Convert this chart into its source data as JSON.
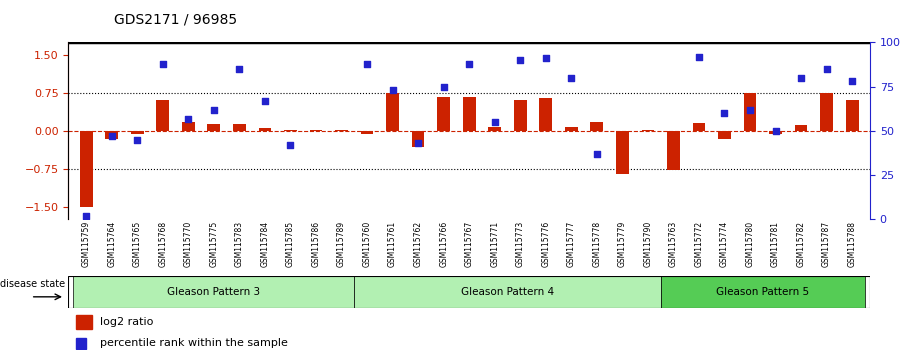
{
  "title": "GDS2171 / 96985",
  "samples": [
    "GSM115759",
    "GSM115764",
    "GSM115765",
    "GSM115768",
    "GSM115770",
    "GSM115775",
    "GSM115783",
    "GSM115784",
    "GSM115785",
    "GSM115786",
    "GSM115789",
    "GSM115760",
    "GSM115761",
    "GSM115762",
    "GSM115766",
    "GSM115767",
    "GSM115771",
    "GSM115773",
    "GSM115776",
    "GSM115777",
    "GSM115778",
    "GSM115779",
    "GSM115790",
    "GSM115763",
    "GSM115772",
    "GSM115774",
    "GSM115780",
    "GSM115781",
    "GSM115782",
    "GSM115787",
    "GSM115788"
  ],
  "log2_ratio": [
    -1.5,
    -0.15,
    -0.05,
    0.62,
    0.18,
    0.13,
    0.14,
    0.05,
    0.02,
    0.01,
    0.01,
    -0.05,
    0.76,
    -0.32,
    0.68,
    0.68,
    0.07,
    0.62,
    0.65,
    0.08,
    0.18,
    -0.85,
    0.02,
    -0.78,
    0.15,
    -0.15,
    0.76,
    -0.05,
    0.12,
    0.76,
    0.62
  ],
  "percentile_rank": [
    2,
    47,
    45,
    88,
    57,
    62,
    85,
    67,
    42,
    null,
    null,
    88,
    73,
    43,
    75,
    88,
    55,
    90,
    91,
    80,
    37,
    null,
    null,
    null,
    92,
    60,
    62,
    50,
    80,
    85,
    78
  ],
  "groups": [
    {
      "label": "Gleason Pattern 3",
      "start": 0,
      "end": 10,
      "color": "#b2f0b2"
    },
    {
      "label": "Gleason Pattern 4",
      "start": 11,
      "end": 22,
      "color": "#b2f0b2"
    },
    {
      "label": "Gleason Pattern 5",
      "start": 23,
      "end": 30,
      "color": "#55cc55"
    }
  ],
  "ylim_left": [
    -1.75,
    1.75
  ],
  "ylim_right": [
    0,
    100
  ],
  "yticks_left": [
    -1.5,
    -0.75,
    0.0,
    0.75,
    1.5
  ],
  "yticks_right": [
    0,
    25,
    50,
    75,
    100
  ],
  "hlines": [
    -0.75,
    0.0,
    0.75
  ],
  "bar_color": "#cc2200",
  "dot_color": "#2222cc",
  "ylabel_left_color": "#cc2200",
  "ylabel_right_color": "#2222cc",
  "legend_bar_label": "log2 ratio",
  "legend_dot_label": "percentile rank within the sample",
  "disease_state_label": "disease state"
}
